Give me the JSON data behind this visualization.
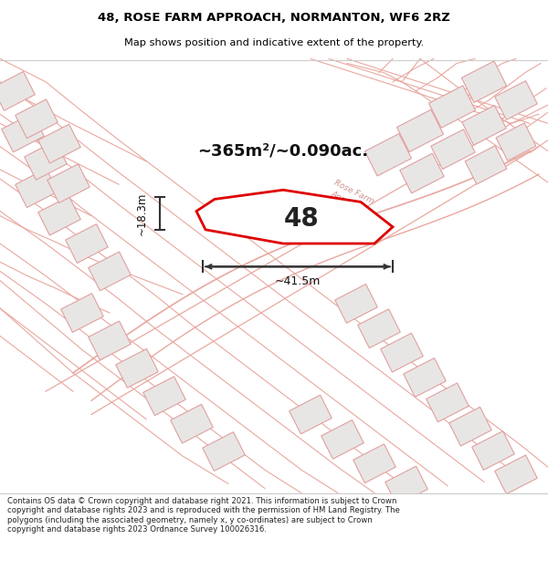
{
  "title_line1": "48, ROSE FARM APPROACH, NORMANTON, WF6 2RZ",
  "title_line2": "Map shows position and indicative extent of the property.",
  "area_text": "~365m²/~0.090ac.",
  "label_48": "48",
  "dim_width": "~41.5m",
  "dim_height": "~18.3m",
  "footer_text": "Contains OS data © Crown copyright and database right 2021. This information is subject to Crown copyright and database rights 2023 and is reproduced with the permission of HM Land Registry. The polygons (including the associated geometry, namely x, y co-ordinates) are subject to Crown copyright and database rights 2023 Ordnance Survey 100026316.",
  "map_bg": "#f7f6f5",
  "plot_fill": "#ffffff",
  "plot_edge": "#dd0000",
  "road_line_color": "#e8a8a0",
  "bldg_fill": "#e8e6e4",
  "bldg_edge": "#e0a0a0",
  "title_bg": "#ffffff",
  "footer_bg": "#ffffff",
  "road_text_color": "#d09090"
}
